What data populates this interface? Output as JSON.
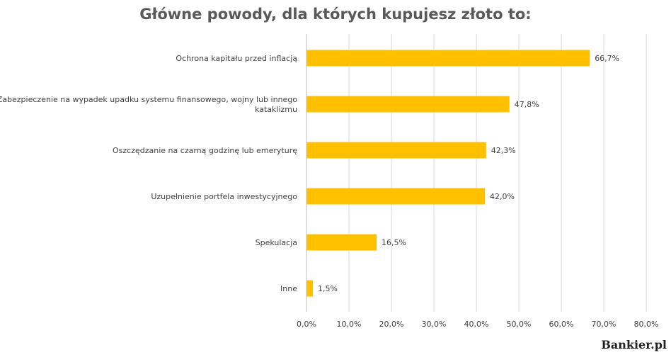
{
  "chart_data": {
    "type": "bar",
    "orientation": "horizontal",
    "title": "Główne powody, dla których kupujesz złoto to:",
    "categories": [
      [
        "Ochrona kapitału przed inflacją"
      ],
      [
        "Zabezpieczenie na wypadek upadku systemu finansowego, wojny lub innego",
        "kataklizmu"
      ],
      [
        "Oszczędzanie na czarną godzinę lub emeryturę"
      ],
      [
        "Uzupełnienie portfela inwestycyjnego"
      ],
      [
        "Spekulacja"
      ],
      [
        "Inne"
      ]
    ],
    "values": [
      66.7,
      47.8,
      42.3,
      42.0,
      16.5,
      1.5
    ],
    "value_labels": [
      "66,7%",
      "47,8%",
      "42,3%",
      "42,0%",
      "16,5%",
      "1,5%"
    ],
    "xlim": [
      0,
      80
    ],
    "xticks": [
      0,
      10,
      20,
      30,
      40,
      50,
      60,
      70,
      80
    ],
    "xtick_labels": [
      "0,0%",
      "10,0%",
      "20,0%",
      "30,0%",
      "40,0%",
      "50,0%",
      "60,0%",
      "70,0%",
      "80,0%"
    ],
    "grid": true,
    "bar_color": "#FFC000"
  },
  "brand": "Bankier.pl"
}
